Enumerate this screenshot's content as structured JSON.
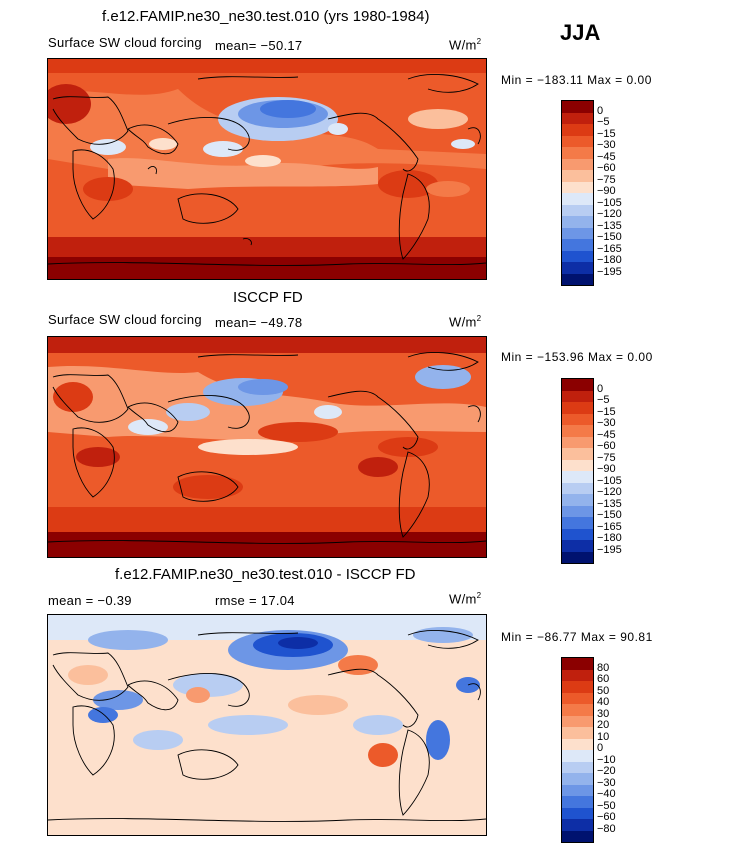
{
  "season": "JJA",
  "panels": [
    {
      "title": "f.e12.FAMIP.ne30_ne30.test.010 (yrs 1980-1984)",
      "subtitle_left": "Surface SW cloud forcing",
      "mean_label": "mean= −50.17",
      "units": "W/m",
      "units_sup": "2",
      "minmax": "Min = −183.11 Max =    0.00",
      "colorbar": {
        "labels": [
          "0",
          "−5",
          "−15",
          "−30",
          "−45",
          "−60",
          "−75",
          "−90",
          "−105",
          "−120",
          "−135",
          "−150",
          "−165",
          "−180",
          "−195"
        ],
        "colors": [
          "#8b0000",
          "#c0200d",
          "#dc3b14",
          "#ec5a2a",
          "#f47a48",
          "#f89a6f",
          "#fbbf9c",
          "#fde0cc",
          "#dde8f8",
          "#b8cdf2",
          "#93b3ec",
          "#6d96e6",
          "#4476de",
          "#1f53cf",
          "#0d2ea6",
          "#00126f"
        ]
      }
    },
    {
      "title": "ISCCP FD",
      "subtitle_left": "Surface SW cloud forcing",
      "mean_label": "mean= −49.78",
      "units": "W/m",
      "units_sup": "2",
      "minmax": "Min = −153.96 Max =    0.00",
      "colorbar": {
        "labels": [
          "0",
          "−5",
          "−15",
          "−30",
          "−45",
          "−60",
          "−75",
          "−90",
          "−105",
          "−120",
          "−135",
          "−150",
          "−165",
          "−180",
          "−195"
        ],
        "colors": [
          "#8b0000",
          "#c0200d",
          "#dc3b14",
          "#ec5a2a",
          "#f47a48",
          "#f89a6f",
          "#fbbf9c",
          "#fde0cc",
          "#dde8f8",
          "#b8cdf2",
          "#93b3ec",
          "#6d96e6",
          "#4476de",
          "#1f53cf",
          "#0d2ea6",
          "#00126f"
        ]
      }
    },
    {
      "title": "f.e12.FAMIP.ne30_ne30.test.010 - ISCCP FD",
      "mean_label": "mean =   −0.39",
      "rmse_label": "rmse =   17.04",
      "units": "W/m",
      "units_sup": "2",
      "minmax": "Min = −86.77 Max =   90.81",
      "colorbar": {
        "labels": [
          "80",
          "60",
          "50",
          "40",
          "30",
          "20",
          "10",
          "0",
          "−10",
          "−20",
          "−30",
          "−40",
          "−50",
          "−60",
          "−80"
        ],
        "colors": [
          "#8b0000",
          "#c0200d",
          "#dc3b14",
          "#ec5a2a",
          "#f47a48",
          "#f89a6f",
          "#fbbf9c",
          "#fde0cc",
          "#dde8f8",
          "#b8cdf2",
          "#93b3ec",
          "#6d96e6",
          "#4476de",
          "#1f53cf",
          "#0d2ea6",
          "#00126f"
        ]
      }
    }
  ]
}
